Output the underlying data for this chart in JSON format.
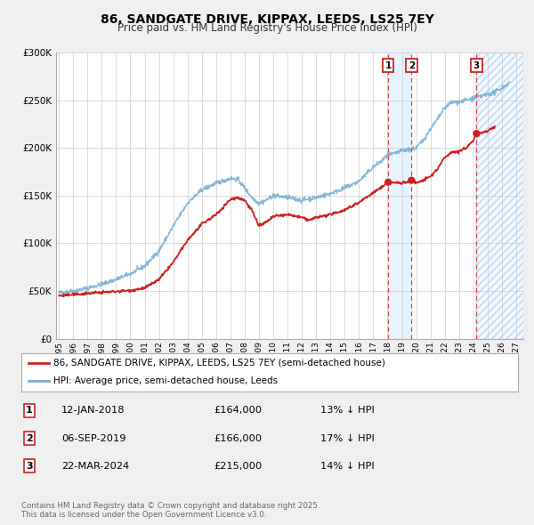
{
  "title": "86, SANDGATE DRIVE, KIPPAX, LEEDS, LS25 7EY",
  "subtitle": "Price paid vs. HM Land Registry's House Price Index (HPI)",
  "hpi_label": "HPI: Average price, semi-detached house, Leeds",
  "price_label": "86, SANDGATE DRIVE, KIPPAX, LEEDS, LS25 7EY (semi-detached house)",
  "hpi_color": "#7bafd4",
  "price_color": "#cc2222",
  "background_color": "#f0f0f0",
  "plot_bg_color": "#ffffff",
  "grid_color": "#cccccc",
  "sale_dates": [
    2018.04,
    2019.67,
    2024.22
  ],
  "sale_prices": [
    164000,
    166000,
    215000
  ],
  "sale_labels": [
    "1",
    "2",
    "3"
  ],
  "sale_info": [
    {
      "label": "1",
      "date": "12-JAN-2018",
      "price": "£164,000",
      "note": "13% ↓ HPI"
    },
    {
      "label": "2",
      "date": "06-SEP-2019",
      "price": "£166,000",
      "note": "17% ↓ HPI"
    },
    {
      "label": "3",
      "date": "22-MAR-2024",
      "price": "£215,000",
      "note": "14% ↓ HPI"
    }
  ],
  "vlines": [
    2018.04,
    2019.67,
    2024.22
  ],
  "shade_solid": [
    2018.04,
    2019.67
  ],
  "shade_hatch": [
    2024.22,
    2027.5
  ],
  "xmin": 1994.8,
  "xmax": 2027.5,
  "ymin": 0,
  "ymax": 300000,
  "yticks": [
    0,
    50000,
    100000,
    150000,
    200000,
    250000,
    300000
  ],
  "ytick_labels": [
    "£0",
    "£50K",
    "£100K",
    "£150K",
    "£200K",
    "£250K",
    "£300K"
  ],
  "footer": "Contains HM Land Registry data © Crown copyright and database right 2025.\nThis data is licensed under the Open Government Licence v3.0."
}
